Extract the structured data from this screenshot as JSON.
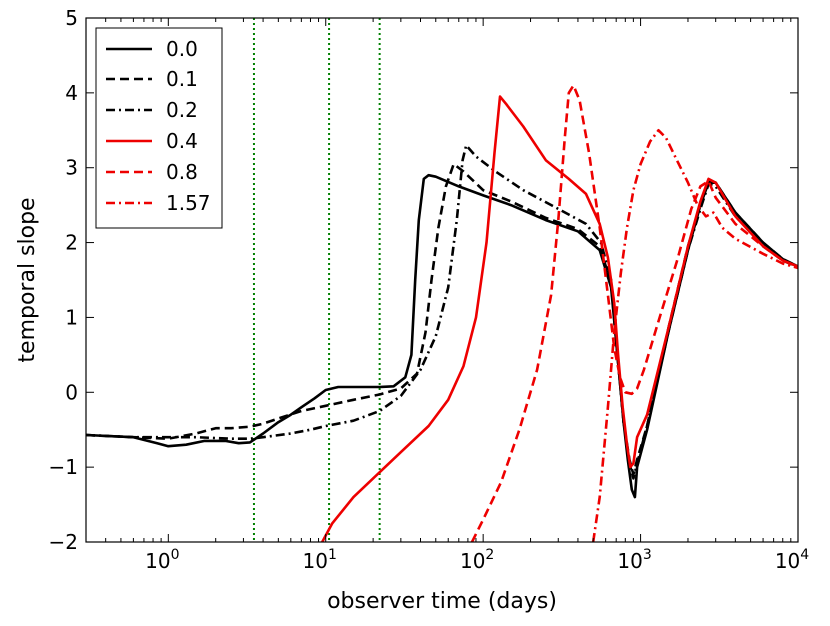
{
  "chart_data": {
    "type": "line",
    "title": "",
    "xlabel": "observer time (days)",
    "ylabel": "temporal slope",
    "xscale": "log",
    "xlim": [
      0.3,
      10000
    ],
    "ylim": [
      -2,
      5
    ],
    "x_ticks": [
      {
        "value": 1,
        "base": "10",
        "exp": "0"
      },
      {
        "value": 10,
        "base": "10",
        "exp": "1"
      },
      {
        "value": 100,
        "base": "10",
        "exp": "2"
      },
      {
        "value": 1000,
        "base": "10",
        "exp": "3"
      },
      {
        "value": 10000,
        "base": "10",
        "exp": "4"
      }
    ],
    "y_ticks": [
      {
        "value": -2,
        "label": "−2"
      },
      {
        "value": -1,
        "label": "−1"
      },
      {
        "value": 0,
        "label": "0"
      },
      {
        "value": 1,
        "label": "1"
      },
      {
        "value": 2,
        "label": "2"
      },
      {
        "value": 3,
        "label": "3"
      },
      {
        "value": 4,
        "label": "4"
      },
      {
        "value": 5,
        "label": "5"
      }
    ],
    "vlines": [
      {
        "x": 3.5,
        "color": "#008000",
        "style": "dotted"
      },
      {
        "x": 10.5,
        "color": "#008000",
        "style": "dotted"
      },
      {
        "x": 22,
        "color": "#008000",
        "style": "dotted"
      }
    ],
    "legend_position": "top-left",
    "series": [
      {
        "name": "0.0",
        "color": "#000000",
        "style": "solid",
        "points": [
          [
            0.3,
            -0.57
          ],
          [
            0.6,
            -0.6
          ],
          [
            0.85,
            -0.68
          ],
          [
            1.0,
            -0.72
          ],
          [
            1.3,
            -0.7
          ],
          [
            1.7,
            -0.65
          ],
          [
            2.3,
            -0.65
          ],
          [
            2.8,
            -0.68
          ],
          [
            3.3,
            -0.67
          ],
          [
            4,
            -0.55
          ],
          [
            5,
            -0.4
          ],
          [
            6,
            -0.3
          ],
          [
            7,
            -0.2
          ],
          [
            8.5,
            -0.08
          ],
          [
            10,
            0.03
          ],
          [
            12,
            0.07
          ],
          [
            16,
            0.07
          ],
          [
            22,
            0.07
          ],
          [
            27,
            0.08
          ],
          [
            32,
            0.2
          ],
          [
            35,
            0.5
          ],
          [
            37,
            1.5
          ],
          [
            39,
            2.3
          ],
          [
            42,
            2.85
          ],
          [
            45,
            2.9
          ],
          [
            50,
            2.88
          ],
          [
            70,
            2.75
          ],
          [
            100,
            2.63
          ],
          [
            150,
            2.5
          ],
          [
            250,
            2.3
          ],
          [
            400,
            2.15
          ],
          [
            550,
            1.9
          ],
          [
            650,
            1.4
          ],
          [
            720,
            0.4
          ],
          [
            780,
            -0.4
          ],
          [
            830,
            -0.9
          ],
          [
            880,
            -1.3
          ],
          [
            920,
            -1.4
          ],
          [
            950,
            -1.0
          ],
          [
            1100,
            -0.5
          ],
          [
            1500,
            0.8
          ],
          [
            2000,
            1.9
          ],
          [
            2400,
            2.5
          ],
          [
            2700,
            2.8
          ],
          [
            3000,
            2.8
          ],
          [
            4000,
            2.4
          ],
          [
            6000,
            2.0
          ],
          [
            8000,
            1.78
          ],
          [
            10000,
            1.68
          ]
        ]
      },
      {
        "name": "0.1",
        "color": "#000000",
        "style": "dashed",
        "points": [
          [
            0.3,
            -0.57
          ],
          [
            0.6,
            -0.6
          ],
          [
            1.0,
            -0.62
          ],
          [
            1.5,
            -0.55
          ],
          [
            2.0,
            -0.48
          ],
          [
            2.5,
            -0.48
          ],
          [
            3.3,
            -0.46
          ],
          [
            4,
            -0.42
          ],
          [
            5,
            -0.35
          ],
          [
            7,
            -0.25
          ],
          [
            10,
            -0.18
          ],
          [
            15,
            -0.1
          ],
          [
            22,
            -0.03
          ],
          [
            30,
            0.05
          ],
          [
            38,
            0.25
          ],
          [
            43,
            0.8
          ],
          [
            47,
            1.5
          ],
          [
            52,
            2.2
          ],
          [
            58,
            2.75
          ],
          [
            65,
            3.05
          ],
          [
            75,
            2.95
          ],
          [
            100,
            2.7
          ],
          [
            150,
            2.55
          ],
          [
            250,
            2.33
          ],
          [
            400,
            2.18
          ],
          [
            550,
            1.95
          ],
          [
            650,
            1.45
          ],
          [
            720,
            0.4
          ],
          [
            780,
            -0.4
          ],
          [
            850,
            -0.9
          ],
          [
            900,
            -1.1
          ],
          [
            950,
            -0.9
          ],
          [
            1100,
            -0.45
          ],
          [
            1500,
            0.85
          ],
          [
            2000,
            1.95
          ],
          [
            2400,
            2.5
          ],
          [
            2700,
            2.82
          ],
          [
            3000,
            2.8
          ],
          [
            4000,
            2.4
          ],
          [
            6000,
            2.0
          ],
          [
            8000,
            1.78
          ],
          [
            10000,
            1.68
          ]
        ]
      },
      {
        "name": "0.2",
        "color": "#000000",
        "style": "dashdot",
        "points": [
          [
            0.3,
            -0.57
          ],
          [
            0.6,
            -0.6
          ],
          [
            1.0,
            -0.6
          ],
          [
            1.5,
            -0.6
          ],
          [
            2.5,
            -0.62
          ],
          [
            3.3,
            -0.62
          ],
          [
            4,
            -0.6
          ],
          [
            6,
            -0.55
          ],
          [
            8,
            -0.5
          ],
          [
            10,
            -0.45
          ],
          [
            15,
            -0.38
          ],
          [
            22,
            -0.25
          ],
          [
            30,
            -0.05
          ],
          [
            40,
            0.3
          ],
          [
            50,
            0.75
          ],
          [
            60,
            1.4
          ],
          [
            68,
            2.3
          ],
          [
            74,
            3.1
          ],
          [
            78,
            3.3
          ],
          [
            90,
            3.15
          ],
          [
            120,
            2.95
          ],
          [
            180,
            2.7
          ],
          [
            300,
            2.45
          ],
          [
            450,
            2.25
          ],
          [
            560,
            2.0
          ],
          [
            650,
            1.5
          ],
          [
            720,
            0.4
          ],
          [
            780,
            -0.4
          ],
          [
            850,
            -0.95
          ],
          [
            900,
            -1.15
          ],
          [
            950,
            -0.95
          ],
          [
            1100,
            -0.45
          ],
          [
            1500,
            0.8
          ],
          [
            2000,
            1.9
          ],
          [
            2400,
            2.45
          ],
          [
            2700,
            2.78
          ],
          [
            3000,
            2.75
          ],
          [
            4000,
            2.35
          ],
          [
            6000,
            1.98
          ],
          [
            8000,
            1.76
          ],
          [
            10000,
            1.67
          ]
        ]
      },
      {
        "name": "0.4",
        "color": "#ee0000",
        "style": "solid",
        "points": [
          [
            9.5,
            -2.0
          ],
          [
            11,
            -1.75
          ],
          [
            15,
            -1.4
          ],
          [
            20,
            -1.15
          ],
          [
            30,
            -0.8
          ],
          [
            45,
            -0.45
          ],
          [
            60,
            -0.1
          ],
          [
            75,
            0.35
          ],
          [
            90,
            1.0
          ],
          [
            105,
            2.0
          ],
          [
            118,
            3.2
          ],
          [
            128,
            3.95
          ],
          [
            140,
            3.85
          ],
          [
            180,
            3.55
          ],
          [
            250,
            3.1
          ],
          [
            350,
            2.85
          ],
          [
            450,
            2.65
          ],
          [
            550,
            2.25
          ],
          [
            620,
            1.8
          ],
          [
            680,
            1.2
          ],
          [
            720,
            0.5
          ],
          [
            770,
            -0.2
          ],
          [
            820,
            -0.7
          ],
          [
            860,
            -1.0
          ],
          [
            900,
            -0.95
          ],
          [
            950,
            -0.6
          ],
          [
            1100,
            -0.3
          ],
          [
            1500,
            0.85
          ],
          [
            2000,
            1.95
          ],
          [
            2400,
            2.55
          ],
          [
            2700,
            2.85
          ],
          [
            3000,
            2.8
          ],
          [
            4000,
            2.35
          ],
          [
            6000,
            1.95
          ],
          [
            8000,
            1.76
          ],
          [
            10000,
            1.68
          ]
        ]
      },
      {
        "name": "0.8",
        "color": "#ee0000",
        "style": "dashed",
        "points": [
          [
            85,
            -2.0
          ],
          [
            100,
            -1.7
          ],
          [
            130,
            -1.2
          ],
          [
            170,
            -0.5
          ],
          [
            220,
            0.3
          ],
          [
            270,
            1.3
          ],
          [
            300,
            2.3
          ],
          [
            330,
            3.4
          ],
          [
            350,
            4.0
          ],
          [
            375,
            4.1
          ],
          [
            410,
            3.9
          ],
          [
            470,
            3.2
          ],
          [
            550,
            2.2
          ],
          [
            620,
            1.3
          ],
          [
            680,
            0.6
          ],
          [
            740,
            0.2
          ],
          [
            800,
            0.0
          ],
          [
            880,
            -0.02
          ],
          [
            950,
            0.05
          ],
          [
            1050,
            0.3
          ],
          [
            1300,
            0.95
          ],
          [
            1700,
            1.75
          ],
          [
            2100,
            2.45
          ],
          [
            2400,
            2.75
          ],
          [
            2700,
            2.82
          ],
          [
            3000,
            2.6
          ],
          [
            4000,
            2.25
          ],
          [
            6000,
            1.95
          ],
          [
            8000,
            1.76
          ],
          [
            10000,
            1.68
          ]
        ]
      },
      {
        "name": "1.57",
        "color": "#ee0000",
        "style": "dashdot",
        "points": [
          [
            500,
            -2.0
          ],
          [
            550,
            -1.4
          ],
          [
            620,
            -0.2
          ],
          [
            680,
            0.8
          ],
          [
            750,
            1.6
          ],
          [
            820,
            2.2
          ],
          [
            900,
            2.7
          ],
          [
            1000,
            3.05
          ],
          [
            1150,
            3.35
          ],
          [
            1300,
            3.5
          ],
          [
            1450,
            3.4
          ],
          [
            1700,
            3.1
          ],
          [
            2000,
            2.8
          ],
          [
            2300,
            2.5
          ],
          [
            2600,
            2.35
          ],
          [
            2900,
            2.4
          ],
          [
            3300,
            2.2
          ],
          [
            4000,
            2.05
          ],
          [
            6000,
            1.85
          ],
          [
            8000,
            1.72
          ],
          [
            10000,
            1.66
          ]
        ]
      }
    ]
  }
}
